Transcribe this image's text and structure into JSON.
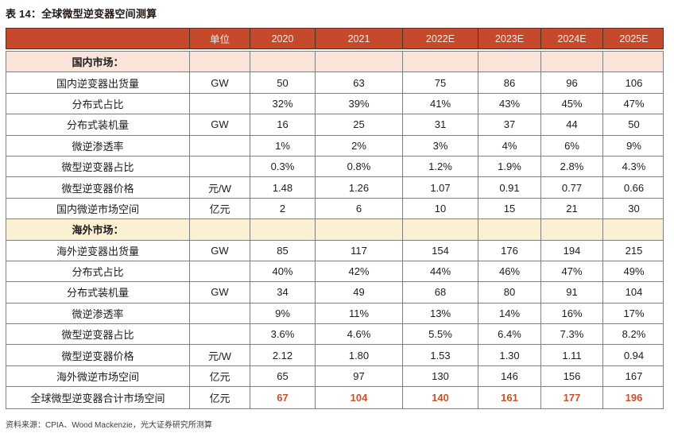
{
  "page": {
    "title": "表 14：全球微型逆变器空间测算",
    "source_note": "资料来源：CPIA、Wood Mackenzie，光大证券研究所测算"
  },
  "colors": {
    "title_color": "#211713",
    "header_bg": "#C6492C",
    "header_text": "#F8ECE4",
    "header_border": "#4C3126",
    "border_color": "#7F7F7F",
    "body_text": "#1C1C1C",
    "domestic_section_bg": "#FAE3D8",
    "overseas_section_bg": "#FCF0D2",
    "highlight_text": "#C9512D",
    "source_text": "#3C3C3C"
  },
  "chart_data": {
    "type": "table",
    "title": "表 14：全球微型逆变器空间测算",
    "columns": [
      "",
      "单位",
      "2020",
      "2021",
      "2022E",
      "2023E",
      "2024E",
      "2025E"
    ],
    "rows": [
      {
        "type": "section-domestic",
        "label": "国内市场：",
        "unit": "",
        "values": [
          "",
          "",
          "",
          "",
          "",
          ""
        ]
      },
      {
        "type": "data",
        "label": "国内逆变器出货量",
        "unit": "GW",
        "values": [
          "50",
          "63",
          "75",
          "86",
          "96",
          "106"
        ]
      },
      {
        "type": "data",
        "label": "分布式占比",
        "unit": "",
        "values": [
          "32%",
          "39%",
          "41%",
          "43%",
          "45%",
          "47%"
        ]
      },
      {
        "type": "data",
        "label": "分布式装机量",
        "unit": "GW",
        "values": [
          "16",
          "25",
          "31",
          "37",
          "44",
          "50"
        ]
      },
      {
        "type": "data",
        "label": "微逆渗透率",
        "unit": "",
        "values": [
          "1%",
          "2%",
          "3%",
          "4%",
          "6%",
          "9%"
        ]
      },
      {
        "type": "data",
        "label": "微型逆变器占比",
        "unit": "",
        "values": [
          "0.3%",
          "0.8%",
          "1.2%",
          "1.9%",
          "2.8%",
          "4.3%"
        ]
      },
      {
        "type": "data",
        "label": "微型逆变器价格",
        "unit": "元/W",
        "values": [
          "1.48",
          "1.26",
          "1.07",
          "0.91",
          "0.77",
          "0.66"
        ]
      },
      {
        "type": "data",
        "label": "国内微逆市场空间",
        "unit": "亿元",
        "values": [
          "2",
          "6",
          "10",
          "15",
          "21",
          "30"
        ]
      },
      {
        "type": "section-overseas",
        "label": "海外市场：",
        "unit": "",
        "values": [
          "",
          "",
          "",
          "",
          "",
          ""
        ]
      },
      {
        "type": "data",
        "label": "海外逆变器出货量",
        "unit": "GW",
        "values": [
          "85",
          "117",
          "154",
          "176",
          "194",
          "215"
        ]
      },
      {
        "type": "data",
        "label": "分布式占比",
        "unit": "",
        "values": [
          "40%",
          "42%",
          "44%",
          "46%",
          "47%",
          "49%"
        ]
      },
      {
        "type": "data",
        "label": "分布式装机量",
        "unit": "GW",
        "values": [
          "34",
          "49",
          "68",
          "80",
          "91",
          "104"
        ]
      },
      {
        "type": "data",
        "label": "微逆渗透率",
        "unit": "",
        "values": [
          "9%",
          "11%",
          "13%",
          "14%",
          "16%",
          "17%"
        ]
      },
      {
        "type": "data",
        "label": "微型逆变器占比",
        "unit": "",
        "values": [
          "3.6%",
          "4.6%",
          "5.5%",
          "6.4%",
          "7.3%",
          "8.2%"
        ]
      },
      {
        "type": "data",
        "label": "微型逆变器价格",
        "unit": "元/W",
        "values": [
          "2.12",
          "1.80",
          "1.53",
          "1.30",
          "1.11",
          "0.94"
        ]
      },
      {
        "type": "data",
        "label": "海外微逆市场空间",
        "unit": "亿元",
        "values": [
          "65",
          "97",
          "130",
          "146",
          "156",
          "167"
        ]
      },
      {
        "type": "total",
        "label": "全球微型逆变器合计市场空间",
        "unit": "亿元",
        "values": [
          "67",
          "104",
          "140",
          "161",
          "177",
          "196"
        ]
      }
    ]
  }
}
